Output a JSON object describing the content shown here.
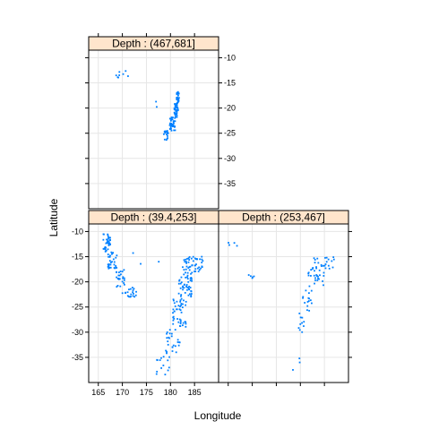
{
  "chart_data": {
    "type": "scatter",
    "xlabel": "Longitude",
    "ylabel": "Latitude",
    "xlim": [
      163,
      190
    ],
    "ylim": [
      -40,
      -8.5
    ],
    "x_ticks": [
      165,
      170,
      175,
      180,
      185
    ],
    "y_ticks": [
      -35,
      -30,
      -25,
      -20,
      -15,
      -10
    ],
    "grid": true,
    "point_color": "#0080ff",
    "strip_color": "#ffe5cc",
    "panels": [
      {
        "id": "deep",
        "label": "Depth : (467,681]",
        "row": "top",
        "col": "left",
        "clusters": [
          {
            "x": [
              181.2,
              181.8
            ],
            "y": [
              -19.0,
              -16.8
            ],
            "n": 30
          },
          {
            "x": [
              180.8,
              181.6
            ],
            "y": [
              -21.8,
              -19.0
            ],
            "n": 40
          },
          {
            "x": [
              179.8,
              181.0
            ],
            "y": [
              -24.5,
              -21.8
            ],
            "n": 40
          },
          {
            "x": [
              178.6,
              179.6
            ],
            "y": [
              -26.5,
              -24.5
            ],
            "n": 20
          },
          {
            "x": [
              168.5,
              172.0
            ],
            "y": [
              -14.0,
              -12.5
            ],
            "n": 8
          },
          {
            "x": [
              176.0,
              178.0
            ],
            "y": [
              -20.0,
              -18.0
            ],
            "n": 2
          }
        ]
      },
      {
        "id": "shallow",
        "label": "Depth : (39.4,253]",
        "row": "bottom",
        "col": "left",
        "clusters": [
          {
            "x": [
              166.0,
              167.5
            ],
            "y": [
              -14.0,
              -10.5
            ],
            "n": 35
          },
          {
            "x": [
              167.0,
              169.0
            ],
            "y": [
              -17.5,
              -14.0
            ],
            "n": 30
          },
          {
            "x": [
              168.5,
              170.5
            ],
            "y": [
              -21.0,
              -17.5
            ],
            "n": 25
          },
          {
            "x": [
              170.0,
              173.0
            ],
            "y": [
              -23.0,
              -21.0
            ],
            "n": 20
          },
          {
            "x": [
              182.5,
              187.0
            ],
            "y": [
              -18.0,
              -15.0
            ],
            "n": 45
          },
          {
            "x": [
              181.5,
              184.5
            ],
            "y": [
              -23.0,
              -18.0
            ],
            "n": 50
          },
          {
            "x": [
              180.5,
              183.5
            ],
            "y": [
              -29.0,
              -23.0
            ],
            "n": 45
          },
          {
            "x": [
              179.0,
              182.0
            ],
            "y": [
              -34.0,
              -29.0
            ],
            "n": 25
          },
          {
            "x": [
              176.5,
              180.0
            ],
            "y": [
              -38.5,
              -34.0
            ],
            "n": 15
          },
          {
            "x": [
              172.0,
              178.0
            ],
            "y": [
              -17.0,
              -13.5
            ],
            "n": 3
          }
        ]
      },
      {
        "id": "mid",
        "label": "Depth : (253,467]",
        "row": "bottom",
        "col": "right",
        "clusters": [
          {
            "x": [
              182.5,
              187.0
            ],
            "y": [
              -17.5,
              -15.0
            ],
            "n": 25
          },
          {
            "x": [
              181.5,
              185.0
            ],
            "y": [
              -21.0,
              -17.5
            ],
            "n": 25
          },
          {
            "x": [
              180.5,
              182.5
            ],
            "y": [
              -26.0,
              -21.0
            ],
            "n": 15
          },
          {
            "x": [
              179.5,
              181.0
            ],
            "y": [
              -31.0,
              -26.0
            ],
            "n": 10
          },
          {
            "x": [
              178.0,
              180.0
            ],
            "y": [
              -37.5,
              -33.0
            ],
            "n": 3
          },
          {
            "x": [
              165.0,
              167.0
            ],
            "y": [
              -13.5,
              -12.0
            ],
            "n": 4
          },
          {
            "x": [
              169.0,
              170.5
            ],
            "y": [
              -19.5,
              -18.5
            ],
            "n": 5
          }
        ]
      }
    ]
  }
}
